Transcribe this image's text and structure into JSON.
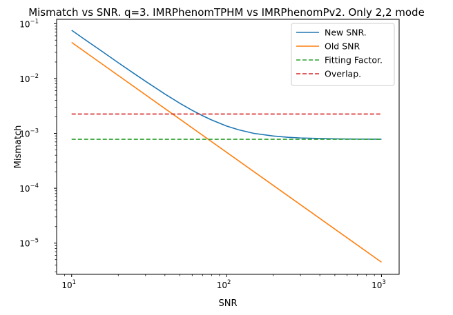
{
  "chart_data": {
    "type": "line",
    "title": "Mismatch vs SNR. q=3. IMRPhenomTPHM vs IMRPhenomPv2. Only 2,2 mode",
    "xlabel": "SNR",
    "ylabel": "Mismatch",
    "xscale": "log",
    "yscale": "log",
    "xlim": [
      8.0,
      1300
    ],
    "ylim": [
      2.7e-06,
      0.12
    ],
    "xticks": [
      {
        "value": 10,
        "base": "10",
        "exp": "1"
      },
      {
        "value": 100,
        "base": "10",
        "exp": "2"
      },
      {
        "value": 1000,
        "base": "10",
        "exp": "3"
      }
    ],
    "yticks": [
      {
        "value": 1e-05,
        "base": "10",
        "exp": "−5"
      },
      {
        "value": 0.0001,
        "base": "10",
        "exp": "−4"
      },
      {
        "value": 0.001,
        "base": "10",
        "exp": "−3"
      },
      {
        "value": 0.01,
        "base": "10",
        "exp": "−2"
      },
      {
        "value": 0.1,
        "base": "10",
        "exp": "−1"
      }
    ],
    "grid": false,
    "legend_position": "upper right",
    "series": [
      {
        "name": "New SNR.",
        "color": "#1f77b4",
        "style": "solid",
        "x": [
          10,
          12,
          15,
          20,
          25,
          30,
          40,
          50,
          60,
          70,
          80,
          100,
          120,
          150,
          200,
          250,
          300,
          400,
          500,
          600,
          700,
          800,
          1000
        ],
        "y": [
          0.0758,
          0.0528,
          0.0342,
          0.0194,
          0.0126,
          0.00891,
          0.00522,
          0.00353,
          0.00263,
          0.0021,
          0.00176,
          0.00136,
          0.00116,
          0.001,
          0.000896,
          0.00085,
          0.000826,
          0.000806,
          0.000796,
          0.000791,
          0.000788,
          0.000786,
          0.000785
        ]
      },
      {
        "name": "Old SNR",
        "color": "#ff7f0e",
        "style": "solid",
        "x": [
          10,
          1000
        ],
        "y": [
          0.0455,
          4.5e-06
        ]
      },
      {
        "name": "Fitting Factor.",
        "color": "#2ca02c",
        "style": "dashed",
        "x": [
          10,
          1000
        ],
        "y": [
          0.00078,
          0.00078
        ]
      },
      {
        "name": "Overlap.",
        "color": "#d62728",
        "style": "dashed",
        "x": [
          10,
          1000
        ],
        "y": [
          0.00225,
          0.00225
        ]
      }
    ]
  }
}
